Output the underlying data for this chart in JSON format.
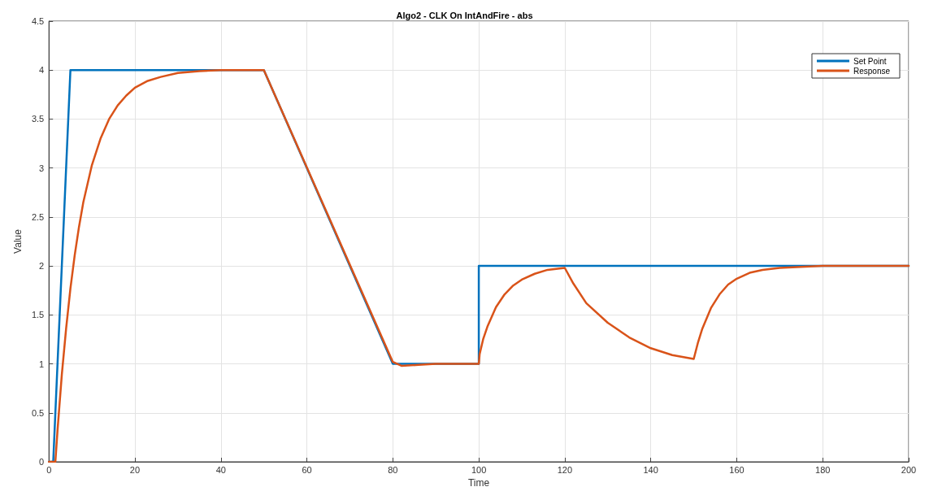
{
  "chart_data": {
    "type": "line",
    "title": "Algo2 - CLK On IntAndFire - abs",
    "xlabel": "Time",
    "ylabel": "Value",
    "xlim": [
      0,
      200
    ],
    "xticks": [
      0,
      20,
      40,
      60,
      80,
      100,
      120,
      140,
      160,
      180,
      200
    ],
    "ylim": [
      0,
      4.5
    ],
    "yticks": [
      0,
      0.5,
      1,
      1.5,
      2,
      2.5,
      3,
      3.5,
      4,
      4.5
    ],
    "grid": true,
    "legend": "top right",
    "marker": "none",
    "line_style": "solid",
    "series": [
      {
        "name": "Set Point",
        "color": "#0072bd",
        "x": [
          0,
          1,
          5,
          50,
          80,
          100,
          100,
          200
        ],
        "values": [
          0,
          0,
          4,
          4,
          1,
          1,
          2,
          2
        ]
      },
      {
        "name": "Response",
        "color": "#d95319",
        "x": [
          0,
          1.5,
          2,
          3,
          4,
          5,
          6,
          7,
          8,
          10,
          12,
          14,
          16,
          18,
          20,
          23,
          26,
          30,
          35,
          40,
          50,
          80,
          82,
          86,
          90,
          100,
          100.2,
          101,
          102,
          104,
          106,
          108,
          110,
          113,
          116,
          120,
          122,
          125,
          130,
          135,
          140,
          145,
          150,
          151,
          152,
          154,
          156,
          158,
          160,
          163,
          166,
          170,
          175,
          180,
          200
        ],
        "values": [
          0,
          0,
          0.32,
          0.89,
          1.36,
          1.77,
          2.11,
          2.4,
          2.65,
          3.03,
          3.3,
          3.5,
          3.64,
          3.74,
          3.82,
          3.89,
          3.93,
          3.97,
          3.99,
          4,
          4,
          1.02,
          0.98,
          0.99,
          1,
          1,
          1.1,
          1.25,
          1.38,
          1.58,
          1.71,
          1.8,
          1.86,
          1.92,
          1.96,
          1.98,
          1.82,
          1.62,
          1.42,
          1.27,
          1.16,
          1.09,
          1.05,
          1.22,
          1.36,
          1.57,
          1.71,
          1.81,
          1.87,
          1.93,
          1.96,
          1.98,
          1.99,
          2,
          2
        ]
      }
    ]
  }
}
